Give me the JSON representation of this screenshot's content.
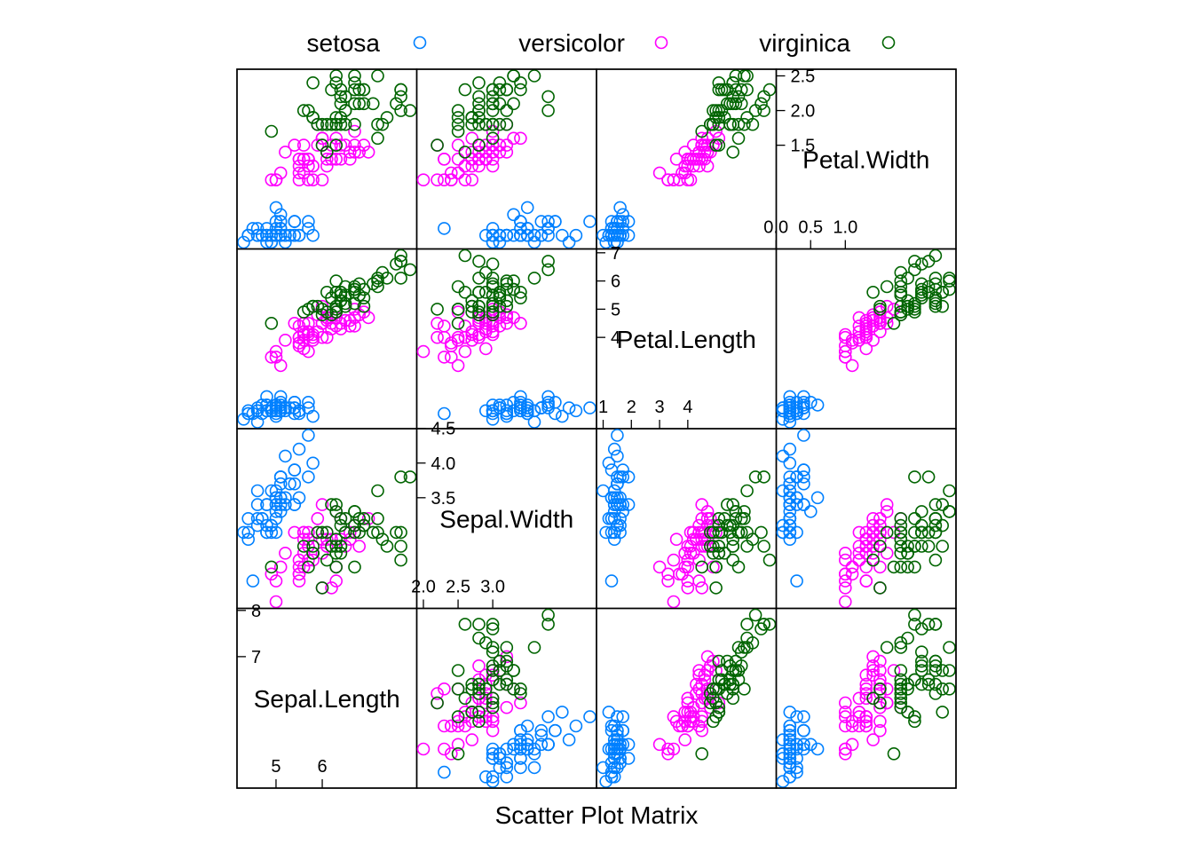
{
  "colors": {
    "setosa": "#0080ff",
    "versicolor": "#ff00ff",
    "virginica": "#006400"
  },
  "chart_data": {
    "type": "scatter",
    "subtype": "scatter-plot-matrix",
    "xlabel": "Scatter Plot Matrix",
    "legend": {
      "placement": "top",
      "entries": [
        {
          "name": "setosa",
          "color": "#0080ff",
          "marker": "open-circle"
        },
        {
          "name": "versicolor",
          "color": "#ff00ff",
          "marker": "open-circle"
        },
        {
          "name": "virginica",
          "color": "#006400",
          "marker": "open-circle"
        }
      ]
    },
    "variables": [
      {
        "name": "Sepal.Length",
        "range": [
          4.3,
          7.9
        ],
        "ticks_low": [
          {
            "value": 5,
            "label": "5"
          },
          {
            "value": 6,
            "label": "6"
          }
        ],
        "ticks_high": [
          {
            "value": 7,
            "label": "7"
          },
          {
            "value": 8,
            "label": "8"
          }
        ]
      },
      {
        "name": "Sepal.Width",
        "range": [
          2.0,
          4.4
        ],
        "ticks_low": [
          {
            "value": 2.0,
            "label": "2.0"
          },
          {
            "value": 2.5,
            "label": "2.5"
          },
          {
            "value": 3.0,
            "label": "3.0"
          }
        ],
        "ticks_high": [
          {
            "value": 3.5,
            "label": "3.5"
          },
          {
            "value": 4.0,
            "label": "4.0"
          },
          {
            "value": 4.5,
            "label": "4.5"
          }
        ]
      },
      {
        "name": "Petal.Length",
        "range": [
          1.0,
          6.9
        ],
        "ticks_low": [
          {
            "value": 1,
            "label": "1"
          },
          {
            "value": 2,
            "label": "2"
          },
          {
            "value": 3,
            "label": "3"
          },
          {
            "value": 4,
            "label": "4"
          }
        ],
        "ticks_high": [
          {
            "value": 4,
            "label": "4"
          },
          {
            "value": 5,
            "label": "5"
          },
          {
            "value": 6,
            "label": "6"
          },
          {
            "value": 7,
            "label": "7"
          }
        ]
      },
      {
        "name": "Petal.Width",
        "range": [
          0.1,
          2.5
        ],
        "ticks_low": [
          {
            "value": 0.0,
            "label": "0.0"
          },
          {
            "value": 0.5,
            "label": "0.5"
          },
          {
            "value": 1.0,
            "label": "1.0"
          }
        ],
        "ticks_high": [
          {
            "value": 1.5,
            "label": "1.5"
          },
          {
            "value": 2.0,
            "label": "2.0"
          },
          {
            "value": 2.5,
            "label": "2.5"
          }
        ]
      }
    ],
    "columns": [
      "Sepal.Length",
      "Sepal.Width",
      "Petal.Length",
      "Petal.Width"
    ],
    "series": [
      {
        "name": "setosa",
        "color": "#0080ff",
        "points": [
          [
            5.1,
            3.5,
            1.4,
            0.2
          ],
          [
            4.9,
            3.0,
            1.4,
            0.2
          ],
          [
            4.7,
            3.2,
            1.3,
            0.2
          ],
          [
            4.6,
            3.1,
            1.5,
            0.2
          ],
          [
            5.0,
            3.6,
            1.4,
            0.2
          ],
          [
            5.4,
            3.9,
            1.7,
            0.4
          ],
          [
            4.6,
            3.4,
            1.4,
            0.3
          ],
          [
            5.0,
            3.4,
            1.5,
            0.2
          ],
          [
            4.4,
            2.9,
            1.4,
            0.2
          ],
          [
            4.9,
            3.1,
            1.5,
            0.1
          ],
          [
            5.4,
            3.7,
            1.5,
            0.2
          ],
          [
            4.8,
            3.4,
            1.6,
            0.2
          ],
          [
            4.8,
            3.0,
            1.4,
            0.1
          ],
          [
            4.3,
            3.0,
            1.1,
            0.1
          ],
          [
            5.8,
            4.0,
            1.2,
            0.2
          ],
          [
            5.7,
            4.4,
            1.5,
            0.4
          ],
          [
            5.4,
            3.9,
            1.3,
            0.4
          ],
          [
            5.1,
            3.5,
            1.4,
            0.3
          ],
          [
            5.7,
            3.8,
            1.7,
            0.3
          ],
          [
            5.1,
            3.8,
            1.5,
            0.3
          ],
          [
            5.4,
            3.4,
            1.7,
            0.2
          ],
          [
            5.1,
            3.7,
            1.5,
            0.4
          ],
          [
            4.6,
            3.6,
            1.0,
            0.2
          ],
          [
            5.1,
            3.3,
            1.7,
            0.5
          ],
          [
            4.8,
            3.4,
            1.9,
            0.2
          ],
          [
            5.0,
            3.0,
            1.6,
            0.2
          ],
          [
            5.0,
            3.4,
            1.6,
            0.4
          ],
          [
            5.2,
            3.5,
            1.5,
            0.2
          ],
          [
            5.2,
            3.4,
            1.4,
            0.2
          ],
          [
            4.7,
            3.2,
            1.6,
            0.2
          ],
          [
            4.8,
            3.1,
            1.6,
            0.2
          ],
          [
            5.4,
            3.4,
            1.5,
            0.4
          ],
          [
            5.2,
            4.1,
            1.5,
            0.1
          ],
          [
            5.5,
            4.2,
            1.4,
            0.2
          ],
          [
            4.9,
            3.1,
            1.5,
            0.2
          ],
          [
            5.0,
            3.2,
            1.2,
            0.2
          ],
          [
            5.5,
            3.5,
            1.3,
            0.2
          ],
          [
            4.9,
            3.6,
            1.4,
            0.1
          ],
          [
            4.4,
            3.0,
            1.3,
            0.2
          ],
          [
            5.1,
            3.4,
            1.5,
            0.2
          ],
          [
            5.0,
            3.5,
            1.3,
            0.3
          ],
          [
            4.5,
            2.3,
            1.3,
            0.3
          ],
          [
            4.4,
            3.2,
            1.3,
            0.2
          ],
          [
            5.0,
            3.5,
            1.6,
            0.6
          ],
          [
            5.1,
            3.8,
            1.9,
            0.4
          ],
          [
            4.8,
            3.0,
            1.4,
            0.3
          ],
          [
            5.1,
            3.8,
            1.6,
            0.2
          ],
          [
            4.6,
            3.2,
            1.4,
            0.2
          ],
          [
            5.3,
            3.7,
            1.5,
            0.2
          ],
          [
            5.0,
            3.3,
            1.4,
            0.2
          ]
        ]
      },
      {
        "name": "versicolor",
        "color": "#ff00ff",
        "points": [
          [
            7.0,
            3.2,
            4.7,
            1.4
          ],
          [
            6.4,
            3.2,
            4.5,
            1.5
          ],
          [
            6.9,
            3.1,
            4.9,
            1.5
          ],
          [
            5.5,
            2.3,
            4.0,
            1.3
          ],
          [
            6.5,
            2.8,
            4.6,
            1.5
          ],
          [
            5.7,
            2.8,
            4.5,
            1.3
          ],
          [
            6.3,
            3.3,
            4.7,
            1.6
          ],
          [
            4.9,
            2.4,
            3.3,
            1.0
          ],
          [
            6.6,
            2.9,
            4.6,
            1.3
          ],
          [
            5.2,
            2.7,
            3.9,
            1.4
          ],
          [
            5.0,
            2.0,
            3.5,
            1.0
          ],
          [
            5.9,
            3.0,
            4.2,
            1.5
          ],
          [
            6.0,
            2.2,
            4.0,
            1.0
          ],
          [
            6.1,
            2.9,
            4.7,
            1.4
          ],
          [
            5.6,
            2.9,
            3.6,
            1.3
          ],
          [
            6.7,
            3.1,
            4.4,
            1.4
          ],
          [
            5.6,
            3.0,
            4.5,
            1.5
          ],
          [
            5.8,
            2.7,
            4.1,
            1.0
          ],
          [
            6.2,
            2.2,
            4.5,
            1.5
          ],
          [
            5.6,
            2.5,
            3.9,
            1.1
          ],
          [
            5.9,
            3.2,
            4.8,
            1.8
          ],
          [
            6.1,
            2.8,
            4.0,
            1.3
          ],
          [
            6.3,
            2.5,
            4.9,
            1.5
          ],
          [
            6.1,
            2.8,
            4.7,
            1.2
          ],
          [
            6.4,
            2.9,
            4.3,
            1.3
          ],
          [
            6.6,
            3.0,
            4.4,
            1.4
          ],
          [
            6.8,
            2.8,
            4.8,
            1.4
          ],
          [
            6.7,
            3.0,
            5.0,
            1.7
          ],
          [
            6.0,
            2.9,
            4.5,
            1.5
          ],
          [
            5.7,
            2.6,
            3.5,
            1.0
          ],
          [
            5.5,
            2.4,
            3.8,
            1.1
          ],
          [
            5.5,
            2.4,
            3.7,
            1.0
          ],
          [
            5.8,
            2.7,
            3.9,
            1.2
          ],
          [
            6.0,
            2.7,
            5.1,
            1.6
          ],
          [
            5.4,
            3.0,
            4.5,
            1.5
          ],
          [
            6.0,
            3.4,
            4.5,
            1.6
          ],
          [
            6.7,
            3.1,
            4.7,
            1.5
          ],
          [
            6.3,
            2.3,
            4.4,
            1.3
          ],
          [
            5.6,
            3.0,
            4.1,
            1.3
          ],
          [
            5.5,
            2.5,
            4.0,
            1.3
          ],
          [
            5.5,
            2.6,
            4.4,
            1.2
          ],
          [
            6.1,
            3.0,
            4.6,
            1.4
          ],
          [
            5.8,
            2.6,
            4.0,
            1.2
          ],
          [
            5.0,
            2.3,
            3.3,
            1.0
          ],
          [
            5.6,
            2.7,
            4.2,
            1.3
          ],
          [
            5.7,
            3.0,
            4.2,
            1.2
          ],
          [
            5.7,
            2.9,
            4.2,
            1.3
          ],
          [
            6.2,
            2.9,
            4.3,
            1.3
          ],
          [
            5.1,
            2.5,
            3.0,
            1.1
          ],
          [
            5.7,
            2.8,
            4.1,
            1.3
          ]
        ]
      },
      {
        "name": "virginica",
        "color": "#006400",
        "points": [
          [
            6.3,
            3.3,
            6.0,
            2.5
          ],
          [
            5.8,
            2.7,
            5.1,
            1.9
          ],
          [
            7.1,
            3.0,
            5.9,
            2.1
          ],
          [
            6.3,
            2.9,
            5.6,
            1.8
          ],
          [
            6.5,
            3.0,
            5.8,
            2.2
          ],
          [
            7.6,
            3.0,
            6.6,
            2.1
          ],
          [
            4.9,
            2.5,
            4.5,
            1.7
          ],
          [
            7.3,
            2.9,
            6.3,
            1.8
          ],
          [
            6.7,
            2.5,
            5.8,
            1.8
          ],
          [
            7.2,
            3.6,
            6.1,
            2.5
          ],
          [
            6.5,
            3.2,
            5.1,
            2.0
          ],
          [
            6.4,
            2.7,
            5.3,
            1.9
          ],
          [
            6.8,
            3.0,
            5.5,
            2.1
          ],
          [
            5.7,
            2.5,
            5.0,
            2.0
          ],
          [
            5.8,
            2.8,
            5.1,
            2.4
          ],
          [
            6.4,
            3.2,
            5.3,
            2.3
          ],
          [
            6.5,
            3.0,
            5.5,
            1.8
          ],
          [
            7.7,
            3.8,
            6.7,
            2.2
          ],
          [
            7.7,
            2.6,
            6.9,
            2.3
          ],
          [
            6.0,
            2.2,
            5.0,
            1.5
          ],
          [
            6.9,
            3.2,
            5.7,
            2.3
          ],
          [
            5.6,
            2.8,
            4.9,
            2.0
          ],
          [
            7.7,
            2.8,
            6.7,
            2.0
          ],
          [
            6.3,
            2.7,
            4.9,
            1.8
          ],
          [
            6.7,
            3.3,
            5.7,
            2.1
          ],
          [
            7.2,
            3.2,
            6.0,
            1.8
          ],
          [
            6.2,
            2.8,
            4.8,
            1.8
          ],
          [
            6.1,
            3.0,
            4.9,
            1.8
          ],
          [
            6.4,
            2.8,
            5.6,
            2.1
          ],
          [
            7.2,
            3.0,
            5.8,
            1.6
          ],
          [
            7.4,
            2.8,
            6.1,
            1.9
          ],
          [
            7.9,
            3.8,
            6.4,
            2.0
          ],
          [
            6.4,
            2.8,
            5.6,
            2.2
          ],
          [
            6.3,
            2.8,
            5.1,
            1.5
          ],
          [
            6.1,
            2.6,
            5.6,
            1.4
          ],
          [
            7.7,
            3.0,
            6.1,
            2.3
          ],
          [
            6.3,
            3.4,
            5.6,
            2.4
          ],
          [
            6.4,
            3.1,
            5.5,
            1.8
          ],
          [
            6.0,
            3.0,
            4.8,
            1.8
          ],
          [
            6.9,
            3.1,
            5.4,
            2.1
          ],
          [
            6.7,
            3.1,
            5.6,
            2.4
          ],
          [
            6.9,
            3.1,
            5.1,
            2.3
          ],
          [
            5.8,
            2.7,
            5.1,
            1.9
          ],
          [
            6.8,
            3.2,
            5.9,
            2.3
          ],
          [
            6.7,
            3.3,
            5.7,
            2.5
          ],
          [
            6.7,
            3.0,
            5.2,
            2.3
          ],
          [
            6.3,
            2.5,
            5.0,
            1.9
          ],
          [
            6.5,
            3.0,
            5.2,
            2.0
          ],
          [
            6.2,
            3.4,
            5.4,
            2.3
          ],
          [
            5.9,
            3.0,
            5.1,
            1.8
          ]
        ]
      }
    ]
  }
}
